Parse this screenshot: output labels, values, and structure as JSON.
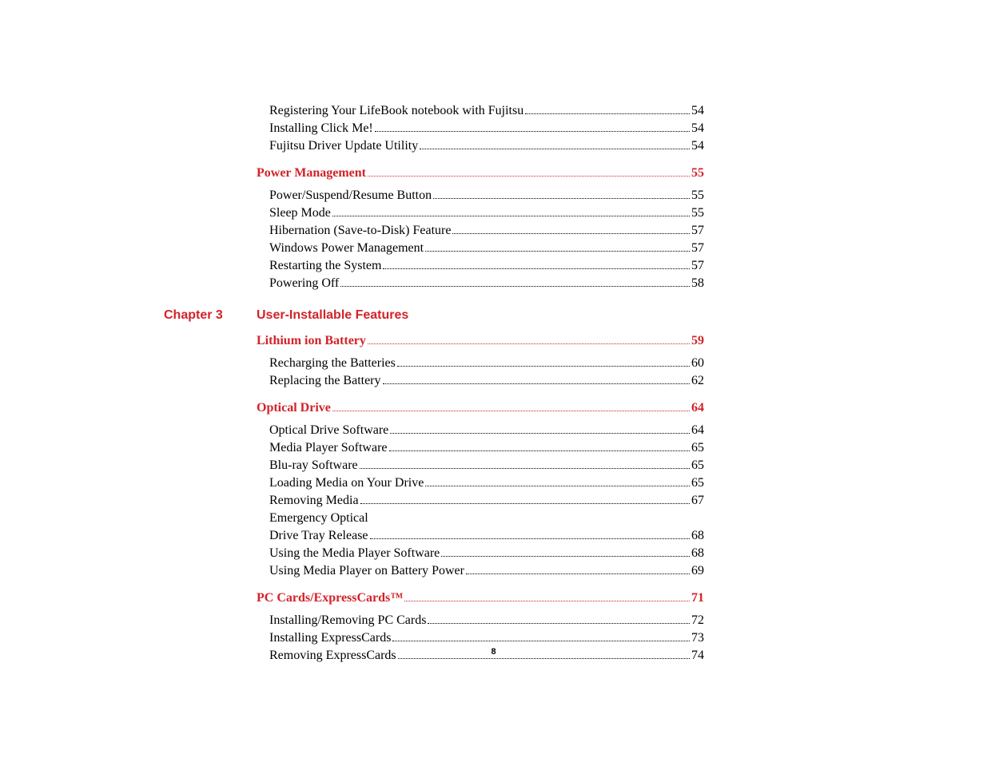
{
  "colors": {
    "accent": "#d2232a",
    "text": "#000000",
    "background": "#ffffff"
  },
  "fonts": {
    "body_family": "Times New Roman",
    "heading_family": "Arial",
    "body_size_pt": 12,
    "heading_size_pt": 12,
    "pagenum_size_pt": 8
  },
  "page_number": "8",
  "pre_entries": [
    {
      "title": "Registering Your LifeBook notebook with Fujitsu",
      "page": "54"
    },
    {
      "title": "Installing Click Me!",
      "page": "54"
    },
    {
      "title": "Fujitsu Driver Update Utility",
      "page": "54"
    }
  ],
  "sections": [
    {
      "heading": "Power Management",
      "page": "55",
      "entries": [
        {
          "title": "Power/Suspend/Resume Button",
          "page": "55"
        },
        {
          "title": "Sleep Mode",
          "page": "55"
        },
        {
          "title": "Hibernation (Save-to-Disk) Feature",
          "page": "57"
        },
        {
          "title": "Windows Power Management",
          "page": "57"
        },
        {
          "title": "Restarting the System",
          "page": "57"
        },
        {
          "title": "Powering Off",
          "page": "58"
        }
      ]
    }
  ],
  "chapter": {
    "label": "Chapter 3",
    "title": "User-Installable Features",
    "sections": [
      {
        "heading": "Lithium ion Battery",
        "page": "59",
        "entries": [
          {
            "title": "Recharging the Batteries",
            "page": "60"
          },
          {
            "title": "Replacing the Battery",
            "page": "62"
          }
        ]
      },
      {
        "heading": "Optical Drive",
        "page": "64",
        "entries": [
          {
            "title": "Optical Drive Software",
            "page": "64"
          },
          {
            "title": "Media Player Software",
            "page": "65"
          },
          {
            "title": "Blu-ray Software",
            "page": "65"
          },
          {
            "title": "Loading Media on Your Drive",
            "page": "65"
          },
          {
            "title": "Removing Media",
            "page": "67"
          },
          {
            "prefix": "Emergency Optical",
            "title": "Drive Tray Release",
            "page": "68"
          },
          {
            "title": "Using the Media Player Software",
            "page": "68"
          },
          {
            "title": "Using Media Player on Battery Power",
            "page": "69"
          }
        ]
      },
      {
        "heading": "PC Cards/ExpressCards™",
        "page": "71",
        "entries": [
          {
            "title": "Installing/Removing PC Cards",
            "page": "72"
          },
          {
            "title": "Installing ExpressCards",
            "page": "73"
          },
          {
            "title": "Removing ExpressCards",
            "page": "74"
          }
        ]
      }
    ]
  }
}
